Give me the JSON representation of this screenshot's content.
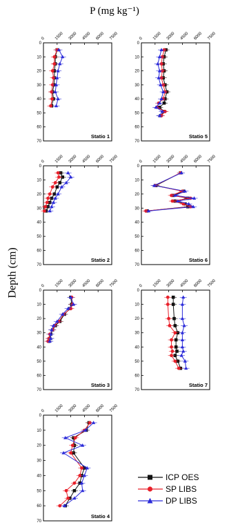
{
  "figure": {
    "title": "P (mg kg⁻¹)",
    "ylabel": "Depth (cm)"
  },
  "legend": {
    "items": [
      {
        "label": "ICP OES",
        "color": "#111111",
        "marker": "square"
      },
      {
        "label": "SP LIBS",
        "color": "#e8202a",
        "marker": "circle"
      },
      {
        "label": "DP LIBS",
        "color": "#2b2bd9",
        "marker": "triangle"
      }
    ]
  },
  "chart_data": [
    {
      "type": "line",
      "title": "Statio 1",
      "xticks": [
        "0",
        "1500",
        "3000",
        "4500",
        "6000",
        "7500"
      ],
      "xlim": [
        0,
        7500
      ],
      "yticks": [
        "0",
        "10",
        "20",
        "30",
        "40",
        "50",
        "60",
        "70"
      ],
      "ylim": [
        0,
        70
      ],
      "series": [
        {
          "name": "ICP OES",
          "x": [
            1500,
            1300,
            1300,
            1200,
            1200,
            1150,
            1000,
            1100,
            900
          ],
          "y": [
            5,
            10,
            15,
            20,
            25,
            30,
            35,
            40,
            45
          ]
        },
        {
          "name": "SP LIBS",
          "x": [
            1500,
            1200,
            1200,
            1000,
            1100,
            1000,
            900,
            950,
            800
          ],
          "y": [
            5,
            10,
            15,
            20,
            25,
            30,
            35,
            40,
            45
          ]
        },
        {
          "name": "DP LIBS",
          "x": [
            1700,
            2100,
            1800,
            1600,
            1500,
            1400,
            1300,
            1600,
            1400
          ],
          "y": [
            5,
            10,
            15,
            20,
            25,
            30,
            35,
            40,
            45
          ]
        }
      ]
    },
    {
      "type": "line",
      "title": "Statio 2",
      "xticks": [
        "0",
        "1500",
        "3000",
        "4500",
        "6000",
        "7500"
      ],
      "xlim": [
        0,
        7500
      ],
      "yticks": [
        "0",
        "10",
        "20",
        "30",
        "40",
        "50",
        "60",
        "70"
      ],
      "ylim": [
        0,
        70
      ],
      "series": [
        {
          "name": "ICP OES",
          "x": [
            1900,
            2100,
            1800,
            1500,
            1200,
            900,
            700,
            500,
            300
          ],
          "y": [
            5,
            8,
            12,
            15,
            20,
            23,
            26,
            29,
            32
          ]
        },
        {
          "name": "SP LIBS",
          "x": [
            1600,
            1700,
            1300,
            1000,
            700,
            500,
            400,
            200,
            100
          ],
          "y": [
            5,
            8,
            12,
            15,
            20,
            23,
            26,
            29,
            32
          ]
        },
        {
          "name": "DP LIBS",
          "x": [
            2700,
            3000,
            2500,
            2000,
            1600,
            1300,
            1100,
            900,
            700
          ],
          "y": [
            5,
            8,
            12,
            15,
            20,
            23,
            26,
            29,
            32
          ]
        }
      ]
    },
    {
      "type": "line",
      "title": "Statio 3",
      "xticks": [
        "0",
        "1500",
        "3000",
        "4500",
        "6000",
        "7500"
      ],
      "xlim": [
        0,
        7500
      ],
      "yticks": [
        "0",
        "10",
        "20",
        "30",
        "40",
        "50",
        "60",
        "70"
      ],
      "ylim": [
        0,
        70
      ],
      "series": [
        {
          "name": "ICP OES",
          "x": [
            3000,
            3100,
            2900,
            2300,
            1800,
            1300,
            1000,
            800,
            700,
            600
          ],
          "y": [
            5,
            10,
            13,
            17,
            22,
            25,
            28,
            31,
            34,
            36
          ]
        },
        {
          "name": "SP LIBS",
          "x": [
            3100,
            3200,
            3000,
            2200,
            1700,
            1200,
            1000,
            700,
            600,
            500
          ],
          "y": [
            5,
            10,
            13,
            17,
            22,
            25,
            28,
            31,
            34,
            36
          ]
        },
        {
          "name": "DP LIBS",
          "x": [
            3000,
            3300,
            2700,
            2100,
            1500,
            1100,
            900,
            800,
            800,
            700
          ],
          "y": [
            5,
            10,
            13,
            17,
            22,
            25,
            28,
            31,
            34,
            36
          ]
        }
      ]
    },
    {
      "type": "line",
      "title": "Statio 4",
      "xticks": [
        "0",
        "1500",
        "3000",
        "4500",
        "6000",
        "7500"
      ],
      "xlim": [
        0,
        7500
      ],
      "yticks": [
        "0",
        "10",
        "20",
        "30",
        "40",
        "50",
        "60",
        "70"
      ],
      "ylim": [
        0,
        70
      ],
      "series": [
        {
          "name": "ICP OES",
          "x": [
            5000,
            4700,
            3300,
            3400,
            3300,
            4500,
            4200,
            4000,
            3400,
            2900,
            2400
          ],
          "y": [
            5,
            10,
            15,
            20,
            25,
            35,
            40,
            45,
            50,
            55,
            60
          ]
        },
        {
          "name": "SP LIBS",
          "x": [
            5100,
            4500,
            3500,
            3200,
            3000,
            4200,
            4000,
            3400,
            2500,
            2700,
            1800
          ],
          "y": [
            5,
            10,
            15,
            20,
            25,
            35,
            40,
            45,
            50,
            55,
            60
          ]
        },
        {
          "name": "DP LIBS",
          "x": [
            5500,
            4600,
            2400,
            4300,
            2200,
            4800,
            4500,
            4200,
            4300,
            3400,
            2300
          ],
          "y": [
            5,
            10,
            15,
            20,
            25,
            35,
            40,
            45,
            50,
            55,
            60
          ]
        }
      ]
    },
    {
      "type": "line",
      "title": "Statio 5",
      "xticks": [
        "0",
        "1500",
        "3000",
        "4500",
        "6000",
        "7500"
      ],
      "xlim": [
        0,
        7500
      ],
      "yticks": [
        "0",
        "10",
        "20",
        "30",
        "40",
        "50",
        "60",
        "70"
      ],
      "ylim": [
        0,
        70
      ],
      "series": [
        {
          "name": "ICP OES",
          "x": [
            2700,
            2500,
            2400,
            2500,
            2400,
            2600,
            2800,
            2600,
            2500,
            2000,
            2500,
            2100
          ],
          "y": [
            5,
            10,
            15,
            20,
            25,
            30,
            35,
            40,
            43,
            46,
            49,
            52
          ]
        },
        {
          "name": "SP LIBS",
          "x": [
            2500,
            2300,
            2200,
            2300,
            2200,
            2400,
            2600,
            2400,
            1900,
            1700,
            2600,
            2200
          ],
          "y": [
            5,
            10,
            15,
            20,
            25,
            30,
            35,
            40,
            43,
            46,
            49,
            52
          ]
        },
        {
          "name": "DP LIBS",
          "x": [
            2200,
            2000,
            1800,
            2000,
            1900,
            2100,
            2400,
            2200,
            2000,
            1600,
            2300,
            2000
          ],
          "y": [
            5,
            10,
            15,
            20,
            25,
            30,
            35,
            40,
            43,
            46,
            49,
            52
          ]
        }
      ]
    },
    {
      "type": "line",
      "title": "Statio 6",
      "xticks": [
        "0",
        "1500",
        "3000",
        "4500",
        "6000",
        "7500"
      ],
      "xlim": [
        0,
        7500
      ],
      "yticks": [
        "0",
        "10",
        "20",
        "30",
        "40",
        "50",
        "60",
        "70"
      ],
      "ylim": [
        0,
        70
      ],
      "series": [
        {
          "name": "ICP OES",
          "x": [
            4300,
            1600,
            4600,
            3500,
            5100,
            3700,
            4800,
            5100,
            600
          ],
          "y": [
            5,
            14,
            18,
            21,
            23,
            25,
            27,
            29,
            32
          ]
        },
        {
          "name": "SP LIBS",
          "x": [
            4300,
            1500,
            4500,
            3300,
            5400,
            3400,
            4600,
            5400,
            500
          ],
          "y": [
            5,
            14,
            18,
            21,
            23,
            25,
            27,
            29,
            32
          ]
        },
        {
          "name": "DP LIBS",
          "x": [
            4400,
            1400,
            4800,
            3700,
            5800,
            4000,
            5200,
            5700,
            800
          ],
          "y": [
            5,
            14,
            18,
            21,
            23,
            25,
            27,
            29,
            32
          ]
        }
      ]
    },
    {
      "type": "line",
      "title": "Statio 7",
      "xticks": [
        "0",
        "1500",
        "3000",
        "4500",
        "6000",
        "7500"
      ],
      "xlim": [
        0,
        7500
      ],
      "yticks": [
        "0",
        "10",
        "20",
        "30",
        "40",
        "50",
        "60",
        "70"
      ],
      "ylim": [
        0,
        70
      ],
      "series": [
        {
          "name": "ICP OES",
          "x": [
            3500,
            3500,
            3600,
            3700,
            4000,
            3800,
            3800,
            3900,
            3700,
            4000,
            4300
          ],
          "y": [
            5,
            10,
            20,
            25,
            30,
            35,
            40,
            43,
            46,
            50,
            55
          ]
        },
        {
          "name": "SP LIBS",
          "x": [
            2900,
            2900,
            3000,
            3100,
            3700,
            3300,
            3300,
            3400,
            3300,
            3700,
            4100
          ],
          "y": [
            5,
            10,
            20,
            25,
            30,
            35,
            40,
            43,
            46,
            50,
            55
          ]
        },
        {
          "name": "DP LIBS",
          "x": [
            4600,
            4500,
            4500,
            4700,
            4500,
            4500,
            4500,
            4600,
            4400,
            4800,
            4900
          ],
          "y": [
            5,
            10,
            20,
            25,
            30,
            35,
            40,
            43,
            46,
            50,
            55
          ]
        }
      ]
    }
  ]
}
